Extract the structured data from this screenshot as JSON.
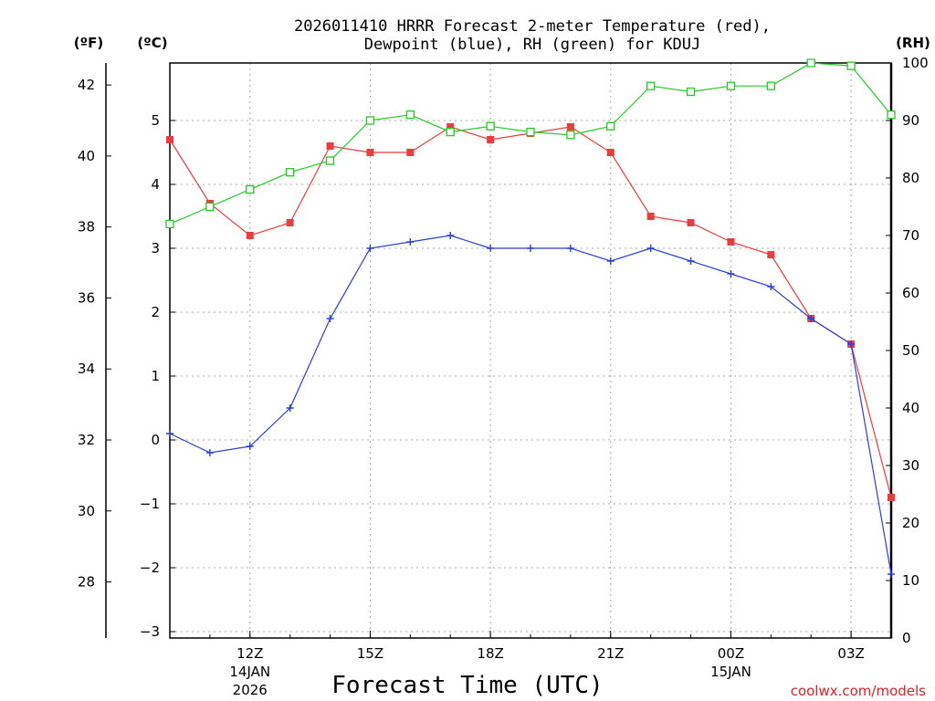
{
  "chart_data": {
    "type": "line",
    "title_line1": "2026011410 HRRR Forecast 2-meter Temperature (red),",
    "title_line2": "Dewpoint (blue), RH (green) for KDUJ",
    "xlabel": "Forecast Time (UTC)",
    "credit": "coolwx.com/models",
    "unit_f": "(ºF)",
    "unit_c": "(ºC)",
    "unit_rh": "(RH)",
    "x_hours": [
      10,
      11,
      12,
      13,
      14,
      15,
      16,
      17,
      18,
      19,
      20,
      21,
      22,
      23,
      24,
      25,
      26,
      27,
      28
    ],
    "xlim": [
      10,
      28
    ],
    "x_ticks": [
      {
        "hour": 12,
        "label": "12Z",
        "sub1": "14JAN",
        "sub2": "2026"
      },
      {
        "hour": 15,
        "label": "15Z",
        "sub1": "",
        "sub2": ""
      },
      {
        "hour": 18,
        "label": "18Z",
        "sub1": "",
        "sub2": ""
      },
      {
        "hour": 21,
        "label": "21Z",
        "sub1": "",
        "sub2": ""
      },
      {
        "hour": 24,
        "label": "00Z",
        "sub1": "15JAN",
        "sub2": ""
      },
      {
        "hour": 27,
        "label": "03Z",
        "sub1": "",
        "sub2": ""
      }
    ],
    "ylim_c": [
      -3.1,
      5.9
    ],
    "yticks_c": [
      {
        "v": -3,
        "label": "−3"
      },
      {
        "v": -2,
        "label": "−2"
      },
      {
        "v": -1,
        "label": "−1"
      },
      {
        "v": 0,
        "label": "0"
      },
      {
        "v": 1,
        "label": "1"
      },
      {
        "v": 2,
        "label": "2"
      },
      {
        "v": 3,
        "label": "3"
      },
      {
        "v": 4,
        "label": "4"
      },
      {
        "v": 5,
        "label": "5"
      }
    ],
    "yticks_f": [
      {
        "v": 28,
        "label": "28"
      },
      {
        "v": 30,
        "label": "30"
      },
      {
        "v": 32,
        "label": "32"
      },
      {
        "v": 34,
        "label": "34"
      },
      {
        "v": 36,
        "label": "36"
      },
      {
        "v": 38,
        "label": "38"
      },
      {
        "v": 40,
        "label": "40"
      },
      {
        "v": 42,
        "label": "42"
      }
    ],
    "ylim_rh": [
      0,
      100
    ],
    "yticks_rh": [
      {
        "v": 0,
        "label": "0"
      },
      {
        "v": 10,
        "label": "10"
      },
      {
        "v": 20,
        "label": "20"
      },
      {
        "v": 30,
        "label": "30"
      },
      {
        "v": 40,
        "label": "40"
      },
      {
        "v": 50,
        "label": "50"
      },
      {
        "v": 60,
        "label": "60"
      },
      {
        "v": 70,
        "label": "70"
      },
      {
        "v": 80,
        "label": "80"
      },
      {
        "v": 90,
        "label": "90"
      },
      {
        "v": 100,
        "label": "100"
      }
    ],
    "grid": true,
    "series": [
      {
        "name": "Temperature",
        "axis": "c",
        "color": "#ee3b3b",
        "marker": "filled-square",
        "values": [
          4.7,
          3.7,
          3.2,
          3.4,
          4.6,
          4.5,
          4.5,
          4.9,
          4.7,
          4.8,
          4.9,
          4.5,
          3.5,
          3.4,
          3.1,
          2.9,
          1.9,
          1.5,
          -0.9
        ]
      },
      {
        "name": "Dewpoint",
        "axis": "c",
        "color": "#2a3fd6",
        "marker": "plus",
        "values": [
          0.1,
          -0.2,
          -0.1,
          0.5,
          1.9,
          3.0,
          3.1,
          3.2,
          3.0,
          3.0,
          3.0,
          2.8,
          3.0,
          2.8,
          2.6,
          2.4,
          1.9,
          1.5,
          -2.1
        ]
      },
      {
        "name": "RH",
        "axis": "rh",
        "color": "#22cc22",
        "marker": "open-square",
        "values": [
          72,
          75,
          78,
          81,
          83,
          90,
          91,
          88,
          89,
          88,
          87.5,
          89,
          96,
          95,
          96,
          96,
          100,
          99.5,
          91
        ]
      }
    ]
  }
}
